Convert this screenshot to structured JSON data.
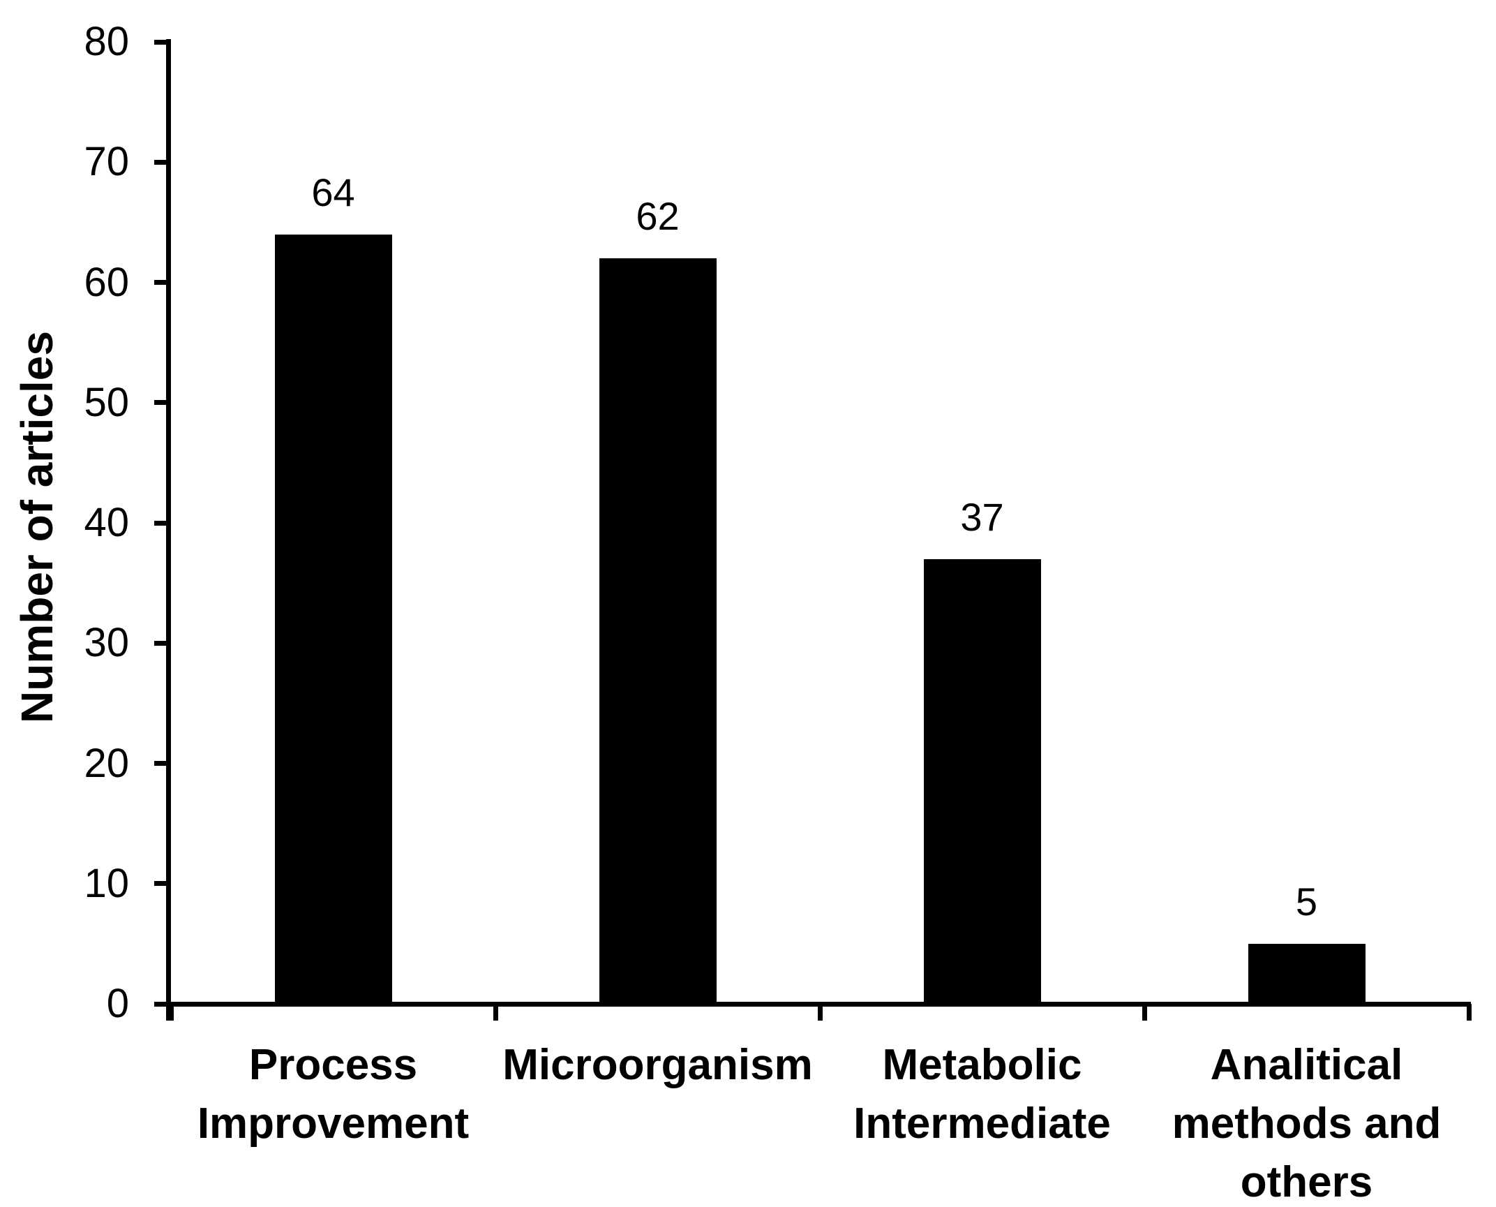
{
  "chart_data": {
    "type": "bar",
    "title": "",
    "categories": [
      "Process\nImprovement",
      "Microorganism",
      "Metabolic\nIntermediate",
      "Analitical\nmethods and\nothers"
    ],
    "values": [
      64,
      62,
      37,
      5
    ],
    "data_labels": [
      "64",
      "62",
      "37",
      "5"
    ],
    "xlabel": "",
    "ylabel": "Number of articles",
    "ylim": [
      0,
      80
    ],
    "yticks": [
      "0",
      "10",
      "20",
      "30",
      "40",
      "50",
      "60",
      "70",
      "80"
    ],
    "ytick_values": [
      0,
      10,
      20,
      30,
      40,
      50,
      60,
      70,
      80
    ],
    "grid": "off",
    "legend": "none",
    "bar_color": "#000000",
    "axis_color": "#000000",
    "text_color": "#000000",
    "background_color": "#ffffff"
  }
}
